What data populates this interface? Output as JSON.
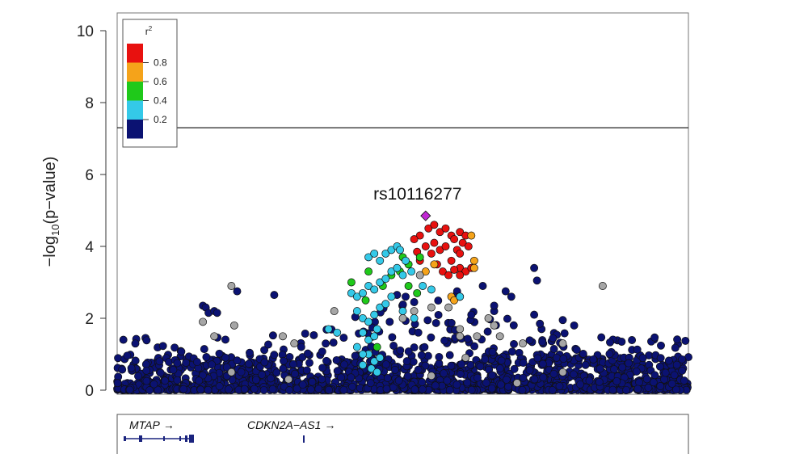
{
  "chart_data": {
    "type": "scatter",
    "ylabel_parts": [
      "−log",
      "10",
      "(p−value)"
    ],
    "ylim": [
      0,
      10.2
    ],
    "yticks": [
      "0",
      "2",
      "4",
      "6",
      "8",
      "10"
    ],
    "threshold": 7.3,
    "grid": false,
    "legend": {
      "title": "r",
      "title_sup": "2",
      "position": "top-left",
      "bins": [
        {
          "color": "#e8110f",
          "label": "0.8"
        },
        {
          "color": "#f5a31a",
          "label": "0.6"
        },
        {
          "color": "#1fc91a",
          "label": "0.4"
        },
        {
          "color": "#34c9e8",
          "label": "0.2"
        },
        {
          "color": "#0b1272",
          "label": ""
        }
      ]
    },
    "colors": {
      "navy": "#0b1272",
      "cyan": "#34c9e8",
      "green": "#1fc91a",
      "orange": "#f5a31a",
      "red": "#e8110f",
      "grey": "#a6a6a6",
      "lead": "#c026d3"
    },
    "lead_snp": {
      "label": "rs10116277",
      "x": 0.54,
      "y": 4.85
    },
    "series": [
      {
        "color": "red",
        "points": [
          [
            0.53,
            4.3
          ],
          [
            0.545,
            4.5
          ],
          [
            0.555,
            4.6
          ],
          [
            0.565,
            4.4
          ],
          [
            0.575,
            4.5
          ],
          [
            0.585,
            4.3
          ],
          [
            0.59,
            4.2
          ],
          [
            0.6,
            4.4
          ],
          [
            0.605,
            4.1
          ],
          [
            0.52,
            4.2
          ],
          [
            0.54,
            4.0
          ],
          [
            0.555,
            4.1
          ],
          [
            0.565,
            3.9
          ],
          [
            0.575,
            4.0
          ],
          [
            0.595,
            3.9
          ],
          [
            0.6,
            3.8
          ],
          [
            0.61,
            4.3
          ],
          [
            0.615,
            4.0
          ],
          [
            0.53,
            3.6
          ],
          [
            0.55,
            3.8
          ],
          [
            0.56,
            3.5
          ],
          [
            0.57,
            3.3
          ],
          [
            0.585,
            3.6
          ],
          [
            0.6,
            3.4
          ],
          [
            0.61,
            3.3
          ],
          [
            0.62,
            3.4
          ],
          [
            0.525,
            3.85
          ],
          [
            0.58,
            3.2
          ],
          [
            0.59,
            3.35
          ],
          [
            0.6,
            3.2
          ]
        ]
      },
      {
        "color": "orange",
        "points": [
          [
            0.62,
            4.3
          ],
          [
            0.625,
            3.6
          ],
          [
            0.625,
            3.4
          ],
          [
            0.555,
            3.5
          ],
          [
            0.54,
            3.3
          ],
          [
            0.585,
            2.6
          ],
          [
            0.59,
            2.5
          ],
          [
            0.6,
            2.6
          ]
        ]
      },
      {
        "color": "green",
        "points": [
          [
            0.41,
            3.0
          ],
          [
            0.435,
            2.5
          ],
          [
            0.465,
            2.9
          ],
          [
            0.48,
            3.2
          ],
          [
            0.495,
            3.3
          ],
          [
            0.51,
            3.5
          ],
          [
            0.53,
            3.7
          ],
          [
            0.51,
            2.9
          ],
          [
            0.525,
            2.7
          ],
          [
            0.5,
            3.7
          ],
          [
            0.455,
            1.2
          ],
          [
            0.44,
            3.3
          ]
        ]
      },
      {
        "color": "cyan",
        "points": [
          [
            0.41,
            2.7
          ],
          [
            0.42,
            2.6
          ],
          [
            0.43,
            2.7
          ],
          [
            0.44,
            2.9
          ],
          [
            0.45,
            2.8
          ],
          [
            0.46,
            3.0
          ],
          [
            0.47,
            3.1
          ],
          [
            0.48,
            3.3
          ],
          [
            0.49,
            3.4
          ],
          [
            0.5,
            3.2
          ],
          [
            0.44,
            3.7
          ],
          [
            0.45,
            3.8
          ],
          [
            0.46,
            3.6
          ],
          [
            0.47,
            3.8
          ],
          [
            0.48,
            3.9
          ],
          [
            0.49,
            4.0
          ],
          [
            0.495,
            3.9
          ],
          [
            0.505,
            3.6
          ],
          [
            0.515,
            3.3
          ],
          [
            0.42,
            2.2
          ],
          [
            0.43,
            2.0
          ],
          [
            0.44,
            1.9
          ],
          [
            0.45,
            2.1
          ],
          [
            0.46,
            2.3
          ],
          [
            0.47,
            2.4
          ],
          [
            0.48,
            2.6
          ],
          [
            0.43,
            1.6
          ],
          [
            0.44,
            1.4
          ],
          [
            0.45,
            1.5
          ],
          [
            0.455,
            1.7
          ],
          [
            0.44,
            1.0
          ],
          [
            0.45,
            0.8
          ],
          [
            0.46,
            0.9
          ],
          [
            0.43,
            0.7
          ],
          [
            0.445,
            0.6
          ],
          [
            0.455,
            0.5
          ],
          [
            0.37,
            1.7
          ],
          [
            0.385,
            1.6
          ],
          [
            0.535,
            2.9
          ],
          [
            0.55,
            2.8
          ],
          [
            0.6,
            2.6
          ],
          [
            0.5,
            2.2
          ],
          [
            0.52,
            2.0
          ],
          [
            0.42,
            1.2
          ],
          [
            0.43,
            1.0
          ]
        ]
      },
      {
        "color": "grey",
        "points": [
          [
            0.2,
            2.9
          ],
          [
            0.205,
            1.8
          ],
          [
            0.15,
            1.9
          ],
          [
            0.17,
            1.5
          ],
          [
            0.38,
            2.2
          ],
          [
            0.29,
            1.5
          ],
          [
            0.31,
            1.3
          ],
          [
            0.5,
            2.0
          ],
          [
            0.52,
            2.2
          ],
          [
            0.55,
            2.3
          ],
          [
            0.58,
            2.3
          ],
          [
            0.6,
            1.7
          ],
          [
            0.6,
            1.5
          ],
          [
            0.63,
            1.5
          ],
          [
            0.65,
            2.0
          ],
          [
            0.66,
            1.8
          ],
          [
            0.67,
            1.5
          ],
          [
            0.71,
            1.3
          ],
          [
            0.78,
            1.3
          ],
          [
            0.85,
            2.9
          ],
          [
            0.2,
            0.5
          ],
          [
            0.3,
            0.3
          ],
          [
            0.55,
            0.4
          ],
          [
            0.7,
            0.2
          ],
          [
            0.78,
            0.5
          ],
          [
            0.61,
            0.9
          ],
          [
            0.53,
            3.2
          ]
        ]
      }
    ],
    "navy_extra": [
      [
        0.15,
        2.35
      ],
      [
        0.155,
        2.3
      ],
      [
        0.16,
        2.15
      ],
      [
        0.17,
        2.2
      ],
      [
        0.175,
        2.15
      ],
      [
        0.21,
        2.75
      ],
      [
        0.275,
        2.65
      ],
      [
        0.73,
        3.4
      ],
      [
        0.735,
        3.05
      ],
      [
        0.64,
        2.9
      ],
      [
        0.68,
        2.75
      ],
      [
        0.69,
        2.6
      ],
      [
        0.595,
        2.75
      ],
      [
        0.59,
        2.6
      ],
      [
        0.62,
        2.1
      ],
      [
        0.66,
        2.2
      ],
      [
        0.66,
        2.35
      ],
      [
        0.73,
        2.1
      ],
      [
        0.74,
        1.85
      ],
      [
        0.78,
        1.95
      ],
      [
        0.8,
        1.8
      ],
      [
        0.52,
        2.45
      ],
      [
        0.505,
        2.6
      ],
      [
        0.49,
        2.65
      ]
    ],
    "genes": [
      {
        "name": "MTAP",
        "arrow": "→"
      },
      {
        "name": "CDKN2A−AS1",
        "arrow": "→"
      }
    ]
  }
}
